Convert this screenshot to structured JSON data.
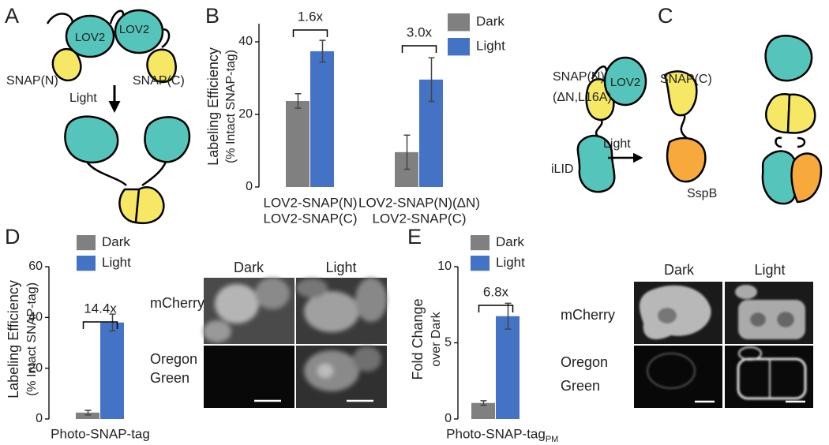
{
  "panels": {
    "labels": [
      "A",
      "B",
      "C",
      "D",
      "E"
    ]
  },
  "diagram_a": {
    "domains": [
      "LOV2",
      "LOV2"
    ],
    "labels": [
      "SNAP(N)",
      "SNAP(C)"
    ],
    "stimulus": "Light"
  },
  "diagram_c": {
    "labels": [
      "SNAP(N)",
      "(ΔN,L16A)",
      "LOV2",
      "SNAP(C)",
      "iLID",
      "SspB"
    ],
    "stimulus": "Light"
  },
  "micrographs": [
    {
      "columns": [
        "Dark",
        "Light"
      ],
      "rows": [
        [
          "mCherry"
        ],
        [
          "Oregon",
          "Green"
        ]
      ]
    },
    {
      "columns": [
        "Dark",
        "Light"
      ],
      "rows": [
        [
          "mCherry"
        ],
        [
          "Oregon",
          "Green"
        ]
      ]
    }
  ],
  "chart_data": [
    {
      "type": "bar",
      "ylabel": [
        "Labeling Efficiency",
        "(% Intact SNAP-tag)"
      ],
      "categories": [
        [
          "LOV2-SNAP(N)",
          "LOV2-SNAP(C)"
        ],
        [
          "LOV2-SNAP(N)(ΔN)",
          "LOV2-SNAP(C)"
        ]
      ],
      "series": [
        {
          "name": "Dark",
          "color": "#808080",
          "values": [
            23.7,
            9.6
          ],
          "errors": [
            2,
            4.7
          ]
        },
        {
          "name": "Light",
          "color": "#4472c4",
          "values": [
            37.4,
            29.6
          ],
          "errors": [
            3,
            6
          ]
        }
      ],
      "annotations": [
        "1.6x",
        "3.0x"
      ],
      "ylim": [
        0,
        45
      ],
      "yticks": [
        0,
        20,
        40
      ]
    },
    {
      "type": "bar",
      "ylabel": [
        "Labeling Efficiency",
        "(% Intact SNAP-tag)"
      ],
      "categories": [
        [
          "Photo-SNAP-tag"
        ]
      ],
      "series": [
        {
          "name": "Dark",
          "color": "#808080",
          "values": [
            2.5
          ],
          "errors": [
            0.9
          ]
        },
        {
          "name": "Light",
          "color": "#4472c4",
          "values": [
            38
          ],
          "errors": [
            3.3
          ]
        }
      ],
      "annotations": [
        "14.4x"
      ],
      "ylim": [
        0,
        60
      ],
      "yticks": [
        0,
        20,
        40,
        60
      ]
    },
    {
      "type": "bar",
      "ylabel": [
        "Fold Change",
        "over Dark"
      ],
      "categories": [
        [
          "Photo-SNAP-tag"
        ]
      ],
      "category_subscript": "PM",
      "series": [
        {
          "name": "Dark",
          "color": "#808080",
          "values": [
            1.05
          ],
          "errors": [
            0.15
          ]
        },
        {
          "name": "Light",
          "color": "#4472c4",
          "values": [
            6.75
          ],
          "errors": [
            0.85
          ]
        }
      ],
      "annotations": [
        "6.8x"
      ],
      "ylim": [
        0,
        10
      ],
      "yticks": [
        0,
        5,
        10
      ]
    }
  ]
}
